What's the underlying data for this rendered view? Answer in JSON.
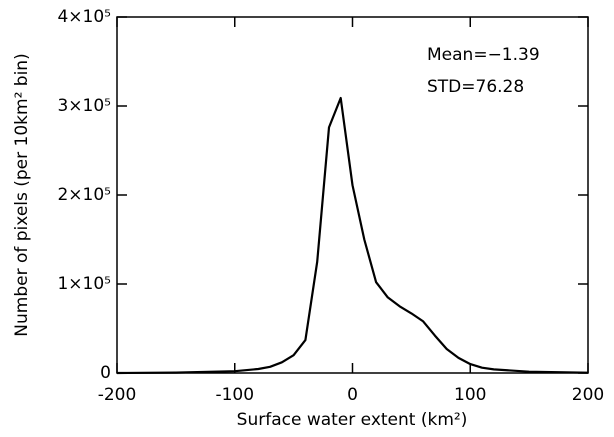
{
  "chart_data": {
    "type": "line",
    "x_label": "Surface water extent (km²)",
    "y_label": "Number of pixels (per 10km² bin)",
    "annotations": [
      "Mean=−1.39",
      "STD=76.28"
    ],
    "x": [
      -200,
      -150,
      -100,
      -80,
      -70,
      -60,
      -50,
      -40,
      -30,
      -20,
      -10,
      0,
      10,
      20,
      30,
      40,
      50,
      60,
      70,
      80,
      90,
      100,
      110,
      120,
      150,
      200
    ],
    "series": [
      {
        "color": "#000000",
        "values": [
          0,
          500,
          2000,
          4500,
          7000,
          12000,
          20000,
          37000,
          125000,
          276000,
          309000,
          211000,
          150000,
          102000,
          85000,
          75000,
          67000,
          58000,
          42000,
          27000,
          17000,
          10000,
          6000,
          4000,
          1500,
          300
        ]
      }
    ],
    "xlim": [
      -200,
      200
    ],
    "xticks": [
      -200,
      -100,
      0,
      100,
      200
    ],
    "ylim": [
      0,
      400000
    ],
    "yticks": [
      0,
      {
        "value": 100000,
        "label": "1×10⁵"
      },
      {
        "value": 200000,
        "label": "2×10⁵"
      },
      {
        "value": 300000,
        "label": "3×10⁵"
      },
      {
        "value": 400000,
        "label": "4×10⁵"
      }
    ]
  }
}
